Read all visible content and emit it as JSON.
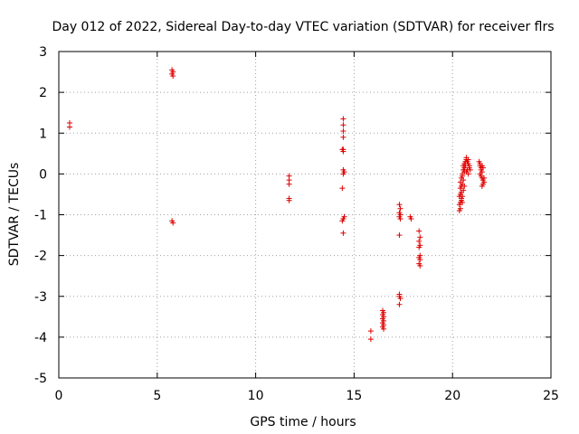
{
  "chart_data": {
    "type": "scatter",
    "title": "Day 012 of 2022, Sidereal Day-to-day VTEC variation (SDTVAR) for receiver flrs",
    "xlabel": "GPS time / hours",
    "ylabel": "SDTVAR / TECUs",
    "xlim": [
      0,
      25
    ],
    "ylim": [
      -5,
      3
    ],
    "xticks": [
      "0",
      "5",
      "10",
      "15",
      "20",
      "25"
    ],
    "yticks": [
      "3",
      "2",
      "1",
      "0",
      "-1",
      "-2",
      "-3",
      "-4",
      "-5"
    ],
    "grid": true,
    "marker": "+",
    "color": "#e00000",
    "series": [
      {
        "name": "SDTVAR",
        "x": [
          0.55,
          0.55,
          5.75,
          5.8,
          5.75,
          5.8,
          5.75,
          5.8,
          11.7,
          11.7,
          11.7,
          11.7,
          11.7,
          14.45,
          14.45,
          14.45,
          14.45,
          14.4,
          14.45,
          14.45,
          14.5,
          14.45,
          14.4,
          14.5,
          14.45,
          14.4,
          14.45,
          14.45,
          15.85,
          15.85,
          16.45,
          16.5,
          16.45,
          16.5,
          16.45,
          16.5,
          16.45,
          16.5,
          16.45,
          16.5,
          17.3,
          17.35,
          17.3,
          17.35,
          17.3,
          17.35,
          17.3,
          17.3,
          17.3,
          17.35,
          17.3,
          17.85,
          17.9,
          18.3,
          18.35,
          18.3,
          18.35,
          18.3,
          18.35,
          18.3,
          18.35,
          18.3,
          18.35,
          20.35,
          20.4,
          20.35,
          20.4,
          20.45,
          20.35,
          20.4,
          20.45,
          20.4,
          20.45,
          20.4,
          20.5,
          20.45,
          20.55,
          20.5,
          20.6,
          20.5,
          20.55,
          20.6,
          20.55,
          20.6,
          20.65,
          20.6,
          20.7,
          20.65,
          20.7,
          20.75,
          20.7,
          20.8,
          20.75,
          20.8,
          20.85,
          20.8,
          20.85,
          20.9,
          20.5,
          20.55,
          20.6,
          20.45,
          20.5,
          21.35,
          21.4,
          21.45,
          21.4,
          21.5,
          21.45,
          21.5,
          21.55,
          21.5,
          21.55,
          21.6,
          21.55,
          21.6,
          21.4,
          21.45,
          21.5
        ],
        "y": [
          1.25,
          1.15,
          2.55,
          2.5,
          2.45,
          2.4,
          -1.15,
          -1.2,
          -0.05,
          -0.15,
          -0.25,
          -0.6,
          -0.65,
          1.35,
          1.2,
          1.05,
          0.9,
          0.6,
          0.55,
          0.1,
          0.05,
          0.0,
          -0.35,
          -1.05,
          -1.1,
          -1.15,
          -1.45,
          0.6,
          -3.85,
          -4.05,
          -3.35,
          -3.4,
          -3.45,
          -3.5,
          -3.55,
          -3.6,
          -3.65,
          -3.7,
          -3.75,
          -3.8,
          -0.75,
          -0.85,
          -0.95,
          -1.0,
          -1.05,
          -1.1,
          -1.5,
          -2.95,
          -3.0,
          -3.05,
          -3.2,
          -1.05,
          -1.1,
          -1.4,
          -1.55,
          -1.65,
          -1.75,
          -1.8,
          -2.0,
          -2.05,
          -2.1,
          -2.2,
          -2.25,
          -0.9,
          -0.85,
          -0.75,
          -0.7,
          -0.6,
          -0.55,
          -0.5,
          -0.45,
          -0.35,
          -0.3,
          -0.2,
          -0.25,
          -0.1,
          -0.15,
          0.0,
          0.05,
          -0.05,
          0.1,
          0.15,
          0.2,
          0.25,
          0.3,
          0.1,
          0.35,
          0.2,
          0.4,
          0.3,
          0.05,
          0.25,
          0.1,
          0.35,
          0.15,
          0.0,
          0.2,
          0.1,
          -0.55,
          -0.4,
          -0.3,
          -0.65,
          -0.7,
          0.3,
          0.2,
          0.1,
          0.0,
          0.05,
          -0.05,
          -0.1,
          0.15,
          0.2,
          -0.15,
          -0.2,
          -0.25,
          -0.1,
          0.25,
          0.15,
          -0.3
        ]
      }
    ]
  }
}
